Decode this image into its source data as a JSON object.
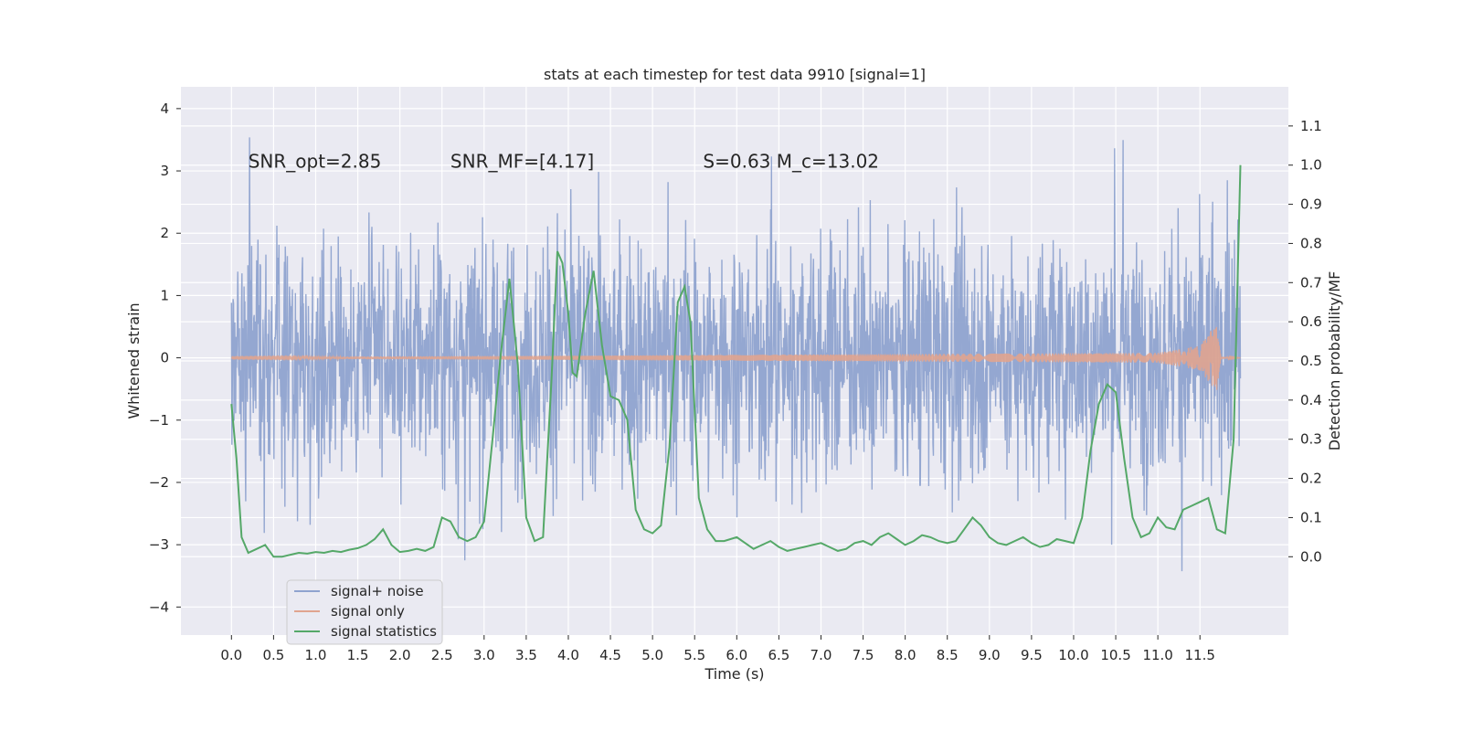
{
  "chart_data": {
    "type": "line",
    "title": "stats at each timestep for test data 9910 [signal=1]",
    "xlabel": "Time (s)",
    "ylabel": "Whitened strain",
    "ylabel_right": "Detection probability/MF",
    "xlim": [
      -0.6,
      12.55
    ],
    "ylim": [
      -4.45,
      4.35
    ],
    "ylim_right": [
      -0.2,
      1.2
    ],
    "xticks": [
      0.0,
      0.5,
      1.0,
      1.5,
      2.0,
      2.5,
      3.0,
      3.5,
      4.0,
      4.5,
      5.0,
      5.5,
      6.0,
      6.5,
      7.0,
      7.5,
      8.0,
      8.5,
      9.0,
      9.5,
      10.0,
      10.5,
      11.0,
      11.5
    ],
    "xtick_labels": [
      "0.0",
      "0.5",
      "1.0",
      "1.5",
      "2.0",
      "2.5",
      "3.0",
      "3.5",
      "4.0",
      "4.5",
      "5.0",
      "5.5",
      "6.0",
      "6.5",
      "7.0",
      "7.5",
      "8.0",
      "8.5",
      "9.0",
      "9.5",
      "10.0",
      "10.5",
      "11.0",
      "11.5"
    ],
    "yticks": [
      -4,
      -3,
      -2,
      -1,
      0,
      1,
      2,
      3,
      4
    ],
    "ytick_labels": [
      "−4",
      "−3",
      "−2",
      "−1",
      "0",
      "1",
      "2",
      "3",
      "4"
    ],
    "yticks_right": [
      0.0,
      0.1,
      0.2,
      0.3,
      0.4,
      0.5,
      0.6,
      0.7,
      0.8,
      0.9,
      1.0,
      1.1
    ],
    "ytick_labels_right": [
      "0.0",
      "0.1",
      "0.2",
      "0.3",
      "0.4",
      "0.5",
      "0.6",
      "0.7",
      "0.8",
      "0.9",
      "1.0",
      "1.1"
    ],
    "grid": true,
    "legend_placement": "lower-left",
    "annotations": [
      {
        "text": "SNR_opt=2.85",
        "x": 0.2,
        "y": 3.05
      },
      {
        "text": "SNR_MF=[4.17]",
        "x": 2.6,
        "y": 3.05
      },
      {
        "text": "S=0.63   M_c=13.02",
        "x": 5.6,
        "y": 3.05
      }
    ],
    "series": [
      {
        "name": "signal+ noise",
        "axis": "left",
        "color": "#8fa3cf",
        "t_range": [
          0.0,
          11.98
        ],
        "envelope_approx": {
          "typical_amplitude": 1.5,
          "max": 3.95,
          "min": -4.05
        }
      },
      {
        "name": "signal only",
        "axis": "left",
        "color": "#e0a48f",
        "description_values": {
          "t": [
            0.0,
            11.0,
            11.5,
            11.7,
            11.75,
            12.0
          ],
          "amplitude": [
            0.01,
            0.08,
            0.2,
            0.55,
            0.02,
            0.0
          ]
        }
      },
      {
        "name": "signal statistics",
        "axis": "right",
        "color": "#55a868",
        "x": [
          0.0,
          0.06,
          0.12,
          0.2,
          0.3,
          0.4,
          0.5,
          0.6,
          0.7,
          0.8,
          0.9,
          1.0,
          1.1,
          1.2,
          1.3,
          1.4,
          1.5,
          1.6,
          1.7,
          1.8,
          1.9,
          2.0,
          2.1,
          2.2,
          2.3,
          2.4,
          2.5,
          2.6,
          2.7,
          2.8,
          2.9,
          3.0,
          3.1,
          3.2,
          3.3,
          3.4,
          3.5,
          3.6,
          3.7,
          3.8,
          3.87,
          3.93,
          4.0,
          4.05,
          4.1,
          4.2,
          4.3,
          4.4,
          4.5,
          4.6,
          4.7,
          4.8,
          4.9,
          5.0,
          5.1,
          5.2,
          5.3,
          5.38,
          5.45,
          5.55,
          5.65,
          5.75,
          5.85,
          6.0,
          6.1,
          6.2,
          6.3,
          6.4,
          6.5,
          6.6,
          6.7,
          6.8,
          6.9,
          7.0,
          7.1,
          7.2,
          7.3,
          7.4,
          7.5,
          7.6,
          7.7,
          7.8,
          7.9,
          8.0,
          8.1,
          8.2,
          8.3,
          8.4,
          8.5,
          8.6,
          8.7,
          8.8,
          8.9,
          9.0,
          9.1,
          9.2,
          9.3,
          9.4,
          9.5,
          9.6,
          9.7,
          9.8,
          9.9,
          10.0,
          10.1,
          10.2,
          10.3,
          10.4,
          10.5,
          10.6,
          10.7,
          10.8,
          10.9,
          11.0,
          11.1,
          11.2,
          11.3,
          11.4,
          11.5,
          11.6,
          11.7,
          11.8,
          11.9,
          11.98
        ],
        "values": [
          0.39,
          0.25,
          0.05,
          0.01,
          0.02,
          0.03,
          0.0,
          0.0,
          0.005,
          0.01,
          0.008,
          0.012,
          0.01,
          0.015,
          0.012,
          0.018,
          0.022,
          0.03,
          0.045,
          0.07,
          0.03,
          0.012,
          0.015,
          0.02,
          0.015,
          0.025,
          0.1,
          0.09,
          0.05,
          0.04,
          0.05,
          0.09,
          0.3,
          0.52,
          0.71,
          0.49,
          0.1,
          0.04,
          0.05,
          0.45,
          0.78,
          0.75,
          0.62,
          0.47,
          0.46,
          0.62,
          0.73,
          0.54,
          0.41,
          0.4,
          0.35,
          0.12,
          0.07,
          0.06,
          0.08,
          0.28,
          0.65,
          0.69,
          0.6,
          0.15,
          0.07,
          0.04,
          0.04,
          0.05,
          0.035,
          0.02,
          0.03,
          0.04,
          0.025,
          0.015,
          0.02,
          0.025,
          0.03,
          0.035,
          0.025,
          0.015,
          0.02,
          0.035,
          0.04,
          0.03,
          0.05,
          0.06,
          0.045,
          0.03,
          0.04,
          0.055,
          0.05,
          0.04,
          0.035,
          0.04,
          0.07,
          0.1,
          0.08,
          0.05,
          0.035,
          0.03,
          0.04,
          0.05,
          0.035,
          0.025,
          0.03,
          0.045,
          0.04,
          0.035,
          0.1,
          0.27,
          0.39,
          0.44,
          0.42,
          0.25,
          0.1,
          0.05,
          0.06,
          0.1,
          0.075,
          0.07,
          0.12,
          0.13,
          0.14,
          0.15,
          0.07,
          0.06,
          0.3,
          1.0
        ]
      }
    ]
  }
}
